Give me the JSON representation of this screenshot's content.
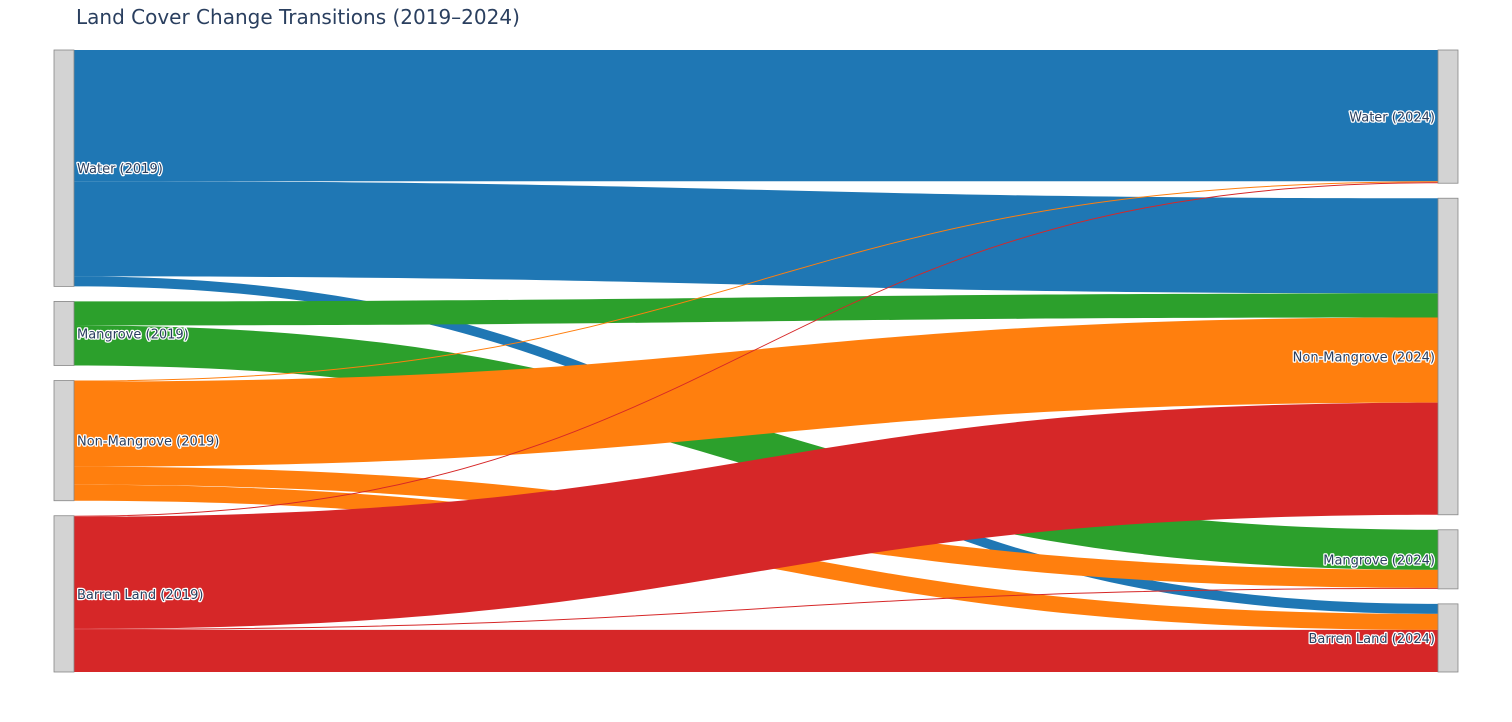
{
  "chart_data": {
    "type": "sankey",
    "title": "Land Cover Change Transitions (2019–2024)",
    "nodes": [
      {
        "id": "w19",
        "label": "Water (2019)",
        "column": 0
      },
      {
        "id": "m19",
        "label": "Mangrove (2019)",
        "column": 0
      },
      {
        "id": "n19",
        "label": "Non-Mangrove (2019)",
        "column": 0
      },
      {
        "id": "b19",
        "label": "Barren Land (2019)",
        "column": 0
      },
      {
        "id": "w24",
        "label": "Water (2024)",
        "column": 1
      },
      {
        "id": "n24",
        "label": "Non-Mangrove (2024)",
        "column": 1
      },
      {
        "id": "m24",
        "label": "Mangrove (2024)",
        "column": 1
      },
      {
        "id": "b24",
        "label": "Barren Land (2024)",
        "column": 1
      }
    ],
    "links": [
      {
        "source": "w19",
        "target": "w24",
        "value": 131,
        "color": "#1f77b4"
      },
      {
        "source": "w19",
        "target": "n24",
        "value": 95,
        "color": "#1f77b4"
      },
      {
        "source": "w19",
        "target": "b24",
        "value": 10,
        "color": "#1f77b4"
      },
      {
        "source": "m19",
        "target": "n24",
        "value": 24,
        "color": "#2ca02c"
      },
      {
        "source": "m19",
        "target": "m24",
        "value": 40,
        "color": "#2ca02c"
      },
      {
        "source": "n19",
        "target": "w24",
        "value": 1,
        "color": "#ff7f0e"
      },
      {
        "source": "n19",
        "target": "n24",
        "value": 85,
        "color": "#ff7f0e"
      },
      {
        "source": "n19",
        "target": "m24",
        "value": 18,
        "color": "#ff7f0e"
      },
      {
        "source": "n19",
        "target": "b24",
        "value": 16,
        "color": "#ff7f0e"
      },
      {
        "source": "b19",
        "target": "w24",
        "value": 1,
        "color": "#d62728"
      },
      {
        "source": "b19",
        "target": "n24",
        "value": 112,
        "color": "#d62728"
      },
      {
        "source": "b19",
        "target": "m24",
        "value": 1,
        "color": "#d62728"
      },
      {
        "source": "b19",
        "target": "b24",
        "value": 42,
        "color": "#d62728"
      }
    ],
    "node_color": "#d3d3d3",
    "node_border_color": "#888888"
  }
}
